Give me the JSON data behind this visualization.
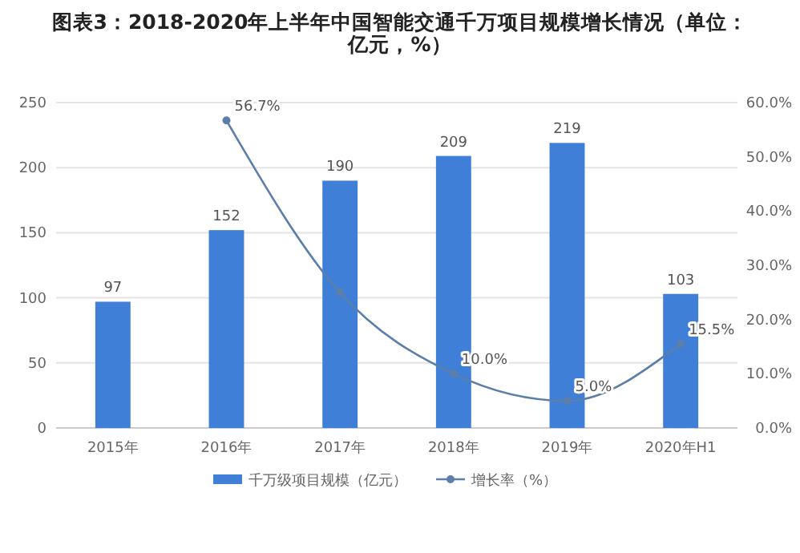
{
  "chart_data": {
    "type": "bar",
    "title": "图表3：2018-2020年上半年中国智能交通千万项目规模增长情况（单位：亿元，%）",
    "categories": [
      "2015年",
      "2016年",
      "2017年",
      "2018年",
      "2019年",
      "2020年H1"
    ],
    "series": [
      {
        "name": "千万级项目规模（亿元）",
        "color": "#3f7fd8",
        "values": [
          97,
          152,
          190,
          209,
          219,
          103
        ],
        "value_labels": [
          "97",
          "152",
          "190",
          "209",
          "219",
          "103"
        ]
      },
      {
        "name": "增长率（%）",
        "type": "line",
        "axis": "y2",
        "color": "#5b7fa8",
        "marker": "circle",
        "values": [
          null,
          56.7,
          25.0,
          10.0,
          5.0,
          15.5
        ],
        "value_labels": [
          null,
          "56.7%",
          null,
          "10.0%",
          "5.0%",
          "15.5%"
        ]
      }
    ],
    "ylim": [
      0,
      250
    ],
    "yticks": [
      0,
      50,
      100,
      150,
      200,
      250
    ],
    "y2lim": [
      0,
      60
    ],
    "y2ticks": [
      {
        "value": 0,
        "label": "0.0%"
      },
      {
        "value": 10,
        "label": "10.0%"
      },
      {
        "value": 20,
        "label": "20.0%"
      },
      {
        "value": 30,
        "label": "30.0%"
      },
      {
        "value": 40,
        "label": "40.0%"
      },
      {
        "value": 50,
        "label": "50.0%"
      },
      {
        "value": 60,
        "label": "60.0%"
      }
    ],
    "grid": "y",
    "legend": "bottom"
  }
}
